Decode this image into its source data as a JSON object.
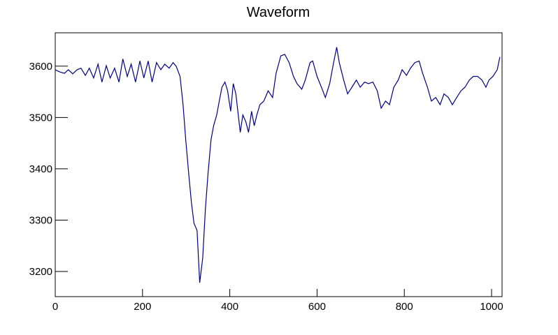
{
  "chart_data": {
    "type": "line",
    "title": "Waveform",
    "x": [
      0,
      10,
      21,
      30,
      40,
      50,
      59,
      69,
      78,
      88,
      98,
      107,
      117,
      126,
      136,
      146,
      155,
      165,
      174,
      184,
      194,
      203,
      213,
      222,
      232,
      242,
      251,
      261,
      270,
      277,
      286,
      293,
      299,
      306,
      312,
      318,
      325,
      331,
      338,
      344,
      350,
      357,
      363,
      370,
      376,
      382,
      389,
      395,
      402,
      408,
      414,
      424,
      430,
      437,
      443,
      450,
      456,
      462,
      469,
      478,
      488,
      498,
      506,
      517,
      526,
      536,
      546,
      554,
      565,
      573,
      584,
      590,
      600,
      610,
      619,
      629,
      638,
      645,
      651,
      661,
      670,
      680,
      690,
      699,
      709,
      718,
      728,
      738,
      747,
      757,
      766,
      776,
      786,
      795,
      805,
      814,
      824,
      834,
      842,
      853,
      862,
      872,
      882,
      891,
      901,
      910,
      920,
      930,
      939,
      949,
      958,
      968,
      978,
      987,
      994,
      1003,
      1013,
      1019
    ],
    "series": [
      {
        "name": "waveform",
        "color": "#000080",
        "values": [
          3593,
          3589,
          3586,
          3593,
          3585,
          3593,
          3596,
          3582,
          3596,
          3577,
          3604,
          3569,
          3601,
          3577,
          3596,
          3569,
          3614,
          3580,
          3604,
          3569,
          3610,
          3577,
          3610,
          3569,
          3607,
          3593,
          3604,
          3596,
          3607,
          3600,
          3580,
          3525,
          3457,
          3389,
          3335,
          3294,
          3280,
          3178,
          3226,
          3321,
          3389,
          3457,
          3484,
          3505,
          3532,
          3559,
          3569,
          3552,
          3512,
          3566,
          3546,
          3471,
          3505,
          3491,
          3471,
          3512,
          3484,
          3505,
          3525,
          3532,
          3552,
          3539,
          3586,
          3620,
          3623,
          3607,
          3580,
          3566,
          3555,
          3573,
          3607,
          3610,
          3580,
          3559,
          3539,
          3566,
          3607,
          3637,
          3607,
          3573,
          3546,
          3559,
          3573,
          3559,
          3569,
          3566,
          3569,
          3552,
          3518,
          3532,
          3525,
          3559,
          3573,
          3593,
          3582,
          3596,
          3607,
          3610,
          3586,
          3559,
          3532,
          3539,
          3525,
          3546,
          3539,
          3525,
          3539,
          3552,
          3559,
          3573,
          3580,
          3580,
          3573,
          3559,
          3573,
          3580,
          3593,
          3618
        ]
      }
    ],
    "xlim": [
      0,
      1024
    ],
    "ylim": [
      3151,
      3665
    ],
    "xticks": [
      0,
      200,
      400,
      600,
      800,
      1000
    ],
    "yticks": [
      3200,
      3300,
      3400,
      3500,
      3600
    ]
  }
}
